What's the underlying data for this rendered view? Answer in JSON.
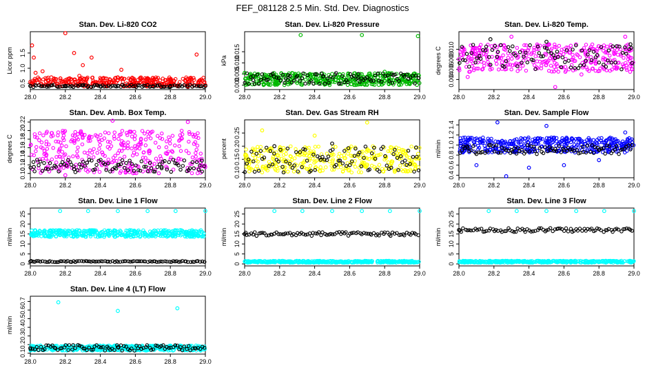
{
  "figure": {
    "title": "FEF_081128  2.5 Min. Std. Dev. Diagnostics"
  },
  "chart_data": [
    {
      "type": "scatter",
      "title": "Stan. Dev. Li-820 CO2",
      "ylabel": "Licor ppm",
      "xlim": [
        28.0,
        29.0
      ],
      "ylim": [
        0.3,
        2.2
      ],
      "xticks": [
        "28.0",
        "28.2",
        "28.4",
        "28.6",
        "28.8",
        "29.0"
      ],
      "yticks": [
        "0.5",
        "1.0",
        "1.5"
      ],
      "series": [
        {
          "name": "points",
          "color": "#ff0000",
          "x": [
            28.0,
            28.01,
            28.02,
            28.03,
            28.05,
            28.07,
            28.1,
            28.12,
            28.15,
            28.18,
            28.2,
            28.22,
            28.25,
            28.28,
            28.3,
            28.32,
            28.35,
            28.4,
            28.45,
            28.5,
            28.52,
            28.55,
            28.6,
            28.7,
            28.8,
            28.9,
            28.95,
            29.0
          ],
          "y": [
            0.55,
            1.75,
            1.35,
            0.85,
            0.65,
            0.9,
            0.6,
            0.7,
            0.5,
            0.55,
            2.15,
            0.65,
            1.5,
            0.75,
            1.1,
            0.65,
            1.35,
            0.6,
            0.55,
            0.7,
            0.95,
            0.5,
            0.45,
            0.45,
            0.45,
            0.4,
            1.45,
            0.45
          ]
        },
        {
          "name": "black",
          "color": "#000000",
          "x": [
            28.0,
            28.1,
            28.2,
            28.3,
            28.4,
            28.5,
            28.6,
            28.7,
            28.8,
            28.9,
            29.0
          ],
          "y": [
            0.42,
            0.43,
            0.42,
            0.44,
            0.41,
            0.42,
            0.43,
            0.41,
            0.42,
            0.43,
            0.42
          ]
        }
      ],
      "band": {
        "color": "#ff0000",
        "ymin": 0.4,
        "ymax": 0.7,
        "density": 1.0
      },
      "black_band": {
        "ymin": 0.38,
        "ymax": 0.46
      }
    },
    {
      "type": "scatter",
      "title": "Stan. Dev. Li-820 Pressure",
      "ylabel": "kPa",
      "xlim": [
        28.0,
        29.0
      ],
      "ylim": [
        -0.002,
        0.024
      ],
      "xticks": [
        "28.0",
        "28.2",
        "28.4",
        "28.6",
        "28.8",
        "29.0"
      ],
      "yticks": [
        "0.000",
        "0.005",
        "0.010",
        "0.015"
      ],
      "series": [
        {
          "name": "points",
          "color": "#00b800",
          "x": [
            28.32,
            28.67,
            28.99,
            28.0,
            28.5,
            28.8
          ],
          "y": [
            0.0225,
            0.0225,
            0.022,
            0.0055,
            0.005,
            0.006
          ]
        },
        {
          "name": "black",
          "color": "#000000",
          "x": [
            28.05,
            28.25,
            28.45,
            28.65,
            28.85
          ],
          "y": [
            0.004,
            0.0045,
            0.004,
            0.005,
            0.0045
          ]
        }
      ],
      "band": {
        "color": "#00b800",
        "ymin": 0.0,
        "ymax": 0.0055,
        "density": 1.3
      },
      "black_band": {
        "ymin": 0.0005,
        "ymax": 0.0055
      }
    },
    {
      "type": "scatter",
      "title": "Stan. Dev. Li-820 Temp.",
      "ylabel": "degrees C",
      "xlim": [
        28.0,
        29.0
      ],
      "ylim": [
        0.002,
        0.0135
      ],
      "xticks": [
        "28.0",
        "28.2",
        "28.4",
        "28.6",
        "28.8",
        "29.0"
      ],
      "yticks": [
        "0.004",
        "0.006",
        "0.008",
        "0.010"
      ],
      "series": [
        {
          "name": "points",
          "color": "#ff00ff",
          "x": [
            28.3,
            28.55,
            28.95,
            28.05,
            28.7
          ],
          "y": [
            0.0125,
            0.0025,
            0.0125,
            0.0045,
            0.005
          ]
        },
        {
          "name": "black",
          "color": "#000000",
          "x": [
            28.18,
            28.5,
            28.98
          ],
          "y": [
            0.012,
            0.0115,
            0.011
          ]
        }
      ],
      "band": {
        "color": "#ff00ff",
        "ymin": 0.0055,
        "ymax": 0.011,
        "density": 1.1
      },
      "black_band": {
        "ymin": 0.006,
        "ymax": 0.011
      }
    },
    {
      "type": "scatter",
      "title": "Stan. Dev. Amb. Box Temp.",
      "ylabel": "degrees C",
      "xlim": [
        28.0,
        29.0
      ],
      "ylim": [
        0.09,
        0.225
      ],
      "xticks": [
        "28.0",
        "28.2",
        "28.4",
        "28.6",
        "28.8",
        "29.0"
      ],
      "yticks": [
        "0.10",
        "0.12",
        "0.14",
        "0.16",
        "0.18",
        "0.20",
        "0.22"
      ],
      "series": [
        {
          "name": "points",
          "color": "#ff00ff",
          "x": [
            28.47,
            28.9,
            28.2
          ],
          "y": [
            0.223,
            0.22,
            0.096
          ]
        },
        {
          "name": "black",
          "color": "#000000",
          "x": [
            28.02,
            28.25,
            28.5,
            28.75,
            28.98
          ],
          "y": [
            0.115,
            0.11,
            0.12,
            0.115,
            0.13
          ]
        }
      ],
      "band": {
        "color": "#ff00ff",
        "ymin": 0.1,
        "ymax": 0.2,
        "density": 1.1
      },
      "black_band": {
        "ymin": 0.103,
        "ymax": 0.132
      }
    },
    {
      "type": "scatter",
      "title": "Stan. Dev. Gas Stream RH",
      "ylabel": "percent",
      "xlim": [
        28.0,
        29.0
      ],
      "ylim": [
        0.08,
        0.3
      ],
      "xticks": [
        "28.0",
        "28.2",
        "28.4",
        "28.6",
        "28.8",
        "29.0"
      ],
      "yticks": [
        "0.10",
        "0.15",
        "0.20",
        "0.25"
      ],
      "series": [
        {
          "name": "points",
          "color": "#ffff00",
          "x": [
            28.7,
            28.1,
            28.4
          ],
          "y": [
            0.29,
            0.26,
            0.24
          ]
        },
        {
          "name": "black",
          "color": "#000000",
          "x": [
            28.17,
            28.5,
            28.98
          ],
          "y": [
            0.2,
            0.21,
            0.195
          ]
        }
      ],
      "band": {
        "color": "#ffff00",
        "ymin": 0.1,
        "ymax": 0.2,
        "density": 1.1
      },
      "black_band": {
        "ymin": 0.1,
        "ymax": 0.2
      }
    },
    {
      "type": "scatter",
      "title": "Stan. Dev. Sample Flow",
      "ylabel": "ml/min",
      "xlim": [
        28.0,
        29.0
      ],
      "ylim": [
        0.35,
        1.5
      ],
      "xticks": [
        "28.0",
        "28.2",
        "28.4",
        "28.6",
        "28.8",
        "29.0"
      ],
      "yticks": [
        "0.4",
        "0.6",
        "0.8",
        "1.0",
        "1.2",
        "1.4"
      ],
      "series": [
        {
          "name": "points",
          "color": "#0000ff",
          "x": [
            28.22,
            28.27,
            28.5,
            28.6,
            28.95,
            28.4,
            28.1,
            28.8
          ],
          "y": [
            1.45,
            0.38,
            1.38,
            0.6,
            1.25,
            0.55,
            0.6,
            0.7
          ]
        },
        {
          "name": "black",
          "color": "#000000",
          "x": [
            28.05,
            28.3,
            28.55,
            28.8
          ],
          "y": [
            0.95,
            0.9,
            0.92,
            0.9
          ]
        }
      ],
      "band": {
        "color": "#0000ff",
        "ymin": 0.85,
        "ymax": 1.15,
        "density": 1.3
      },
      "black_band": {
        "ymin": 0.82,
        "ymax": 1.0
      }
    },
    {
      "type": "scatter",
      "title": "Stan. Dev. Line 1 Flow",
      "ylabel": "ml/min",
      "xlim": [
        28.0,
        29.0
      ],
      "ylim": [
        -1,
        28
      ],
      "xticks": [
        "28.0",
        "28.2",
        "28.4",
        "28.6",
        "28.8",
        "29.0"
      ],
      "yticks": [
        "0",
        "5",
        "10",
        "15",
        "20",
        "25"
      ],
      "series": [
        {
          "name": "points",
          "color": "#00ffff",
          "x": [
            28.17,
            28.33,
            28.5,
            28.67,
            28.83,
            29.0
          ],
          "y": [
            26.5,
            26.5,
            26.5,
            26.5,
            26.5,
            26.5
          ]
        },
        {
          "name": "black",
          "color": "#000000",
          "x": [
            28.0
          ],
          "y": [
            1.2
          ]
        }
      ],
      "band": {
        "color": "#00ffff",
        "ymin": 13.5,
        "ymax": 17,
        "density": 1.3
      },
      "black_band": {
        "ymin": 0.9,
        "ymax": 1.5
      }
    },
    {
      "type": "scatter",
      "title": "Stan. Dev. Line 2 Flow",
      "ylabel": "ml/min",
      "xlim": [
        28.0,
        29.0
      ],
      "ylim": [
        -1,
        28
      ],
      "xticks": [
        "28.0",
        "28.2",
        "28.4",
        "28.6",
        "28.8",
        "29.0"
      ],
      "yticks": [
        "0",
        "5",
        "10",
        "15",
        "20",
        "25"
      ],
      "series": [
        {
          "name": "points",
          "color": "#00ffff",
          "x": [
            28.17,
            28.33,
            28.5,
            28.67,
            28.83,
            29.0
          ],
          "y": [
            26.5,
            26.5,
            26.5,
            26.5,
            26.5,
            26.5
          ]
        },
        {
          "name": "black",
          "color": "#000000",
          "x": [
            28.0
          ],
          "y": [
            15
          ]
        }
      ],
      "band": {
        "color": "#00ffff",
        "ymin": 0.6,
        "ymax": 1.6,
        "density": 1.3
      },
      "black_band": {
        "ymin": 14,
        "ymax": 16
      }
    },
    {
      "type": "scatter",
      "title": "Stan. Dev. Line 3 Flow",
      "ylabel": "ml/min",
      "xlim": [
        28.0,
        29.0
      ],
      "ylim": [
        -1,
        28
      ],
      "xticks": [
        "28.0",
        "28.2",
        "28.4",
        "28.6",
        "28.8",
        "29.0"
      ],
      "yticks": [
        "0",
        "5",
        "10",
        "15",
        "20",
        "25"
      ],
      "series": [
        {
          "name": "points",
          "color": "#00ffff",
          "x": [
            28.17,
            28.33,
            28.5,
            28.67,
            28.83,
            29.0
          ],
          "y": [
            26.5,
            26.5,
            26.5,
            26.5,
            26.5,
            26.5
          ]
        },
        {
          "name": "black",
          "color": "#000000",
          "x": [
            28.0
          ],
          "y": [
            17
          ]
        }
      ],
      "band": {
        "color": "#00ffff",
        "ymin": 0.6,
        "ymax": 1.6,
        "density": 1.3
      },
      "black_band": {
        "ymin": 16,
        "ymax": 18
      }
    },
    {
      "type": "scatter",
      "title": "Stan. Dev. Line 4 (LT) Flow",
      "ylabel": "ml/min",
      "xlim": [
        28.0,
        29.0
      ],
      "ylim": [
        0.09,
        0.76
      ],
      "xticks": [
        "28.0",
        "28.2",
        "28.4",
        "28.6",
        "28.8",
        "29.0"
      ],
      "yticks": [
        "0.1",
        "0.2",
        "0.3",
        "0.4",
        "0.5",
        "0.6",
        "0.7"
      ],
      "series": [
        {
          "name": "points",
          "color": "#00ffff",
          "x": [
            28.16,
            28.5,
            28.84
          ],
          "y": [
            0.69,
            0.59,
            0.62
          ]
        },
        {
          "name": "black",
          "color": "#000000",
          "x": [
            28.0,
            28.5
          ],
          "y": [
            0.16,
            0.17
          ]
        }
      ],
      "band": {
        "color": "#00ffff",
        "ymin": 0.13,
        "ymax": 0.19,
        "density": 1.3
      },
      "black_band": {
        "ymin": 0.13,
        "ymax": 0.2
      }
    }
  ]
}
